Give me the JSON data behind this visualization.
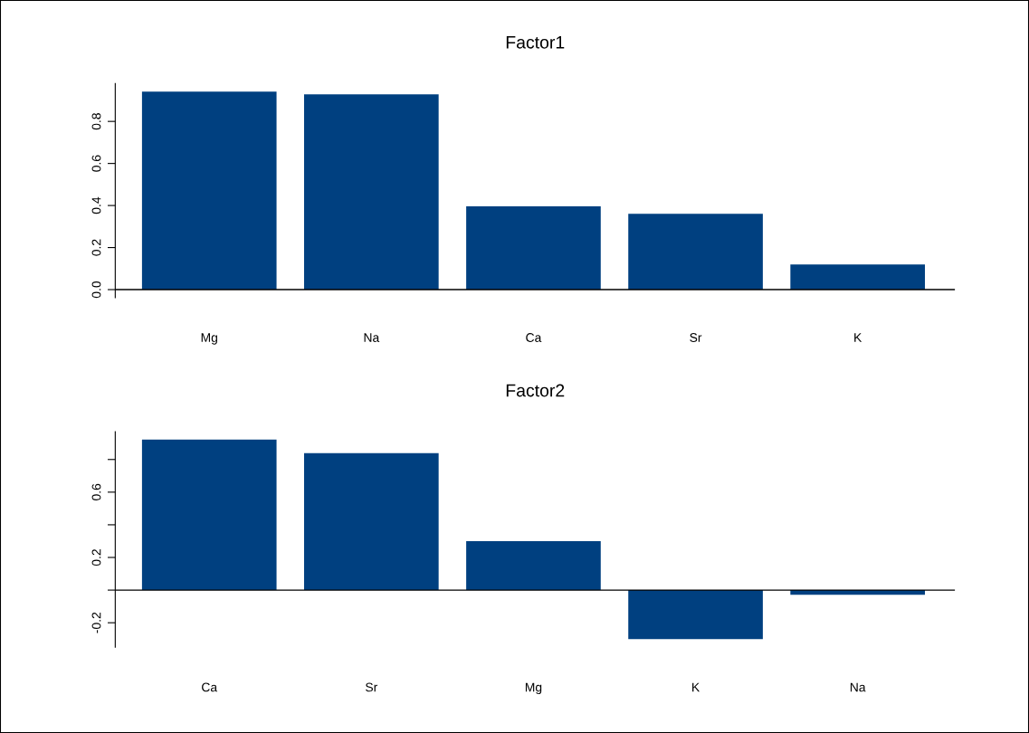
{
  "chart_data": [
    {
      "type": "bar",
      "title": "Factor1",
      "categories": [
        "Mg",
        "Na",
        "Ca",
        "Sr",
        "K"
      ],
      "values": [
        0.942,
        0.929,
        0.396,
        0.361,
        0.12
      ],
      "color": "#004080",
      "ylim": [
        -0.038,
        0.98
      ],
      "yticks": [
        {
          "value": 0,
          "label": "0.0"
        },
        {
          "value": 0.2,
          "label": "0.2"
        },
        {
          "value": 0.4,
          "label": "0.4"
        },
        {
          "value": 0.6,
          "label": "0.6"
        },
        {
          "value": 0.8,
          "label": "0.8"
        }
      ],
      "grid": false,
      "ref_lines": [
        {
          "axis": "y",
          "value": 0,
          "color": "#000000"
        }
      ]
    },
    {
      "type": "bar",
      "title": "Factor2",
      "categories": [
        "Ca",
        "Sr",
        "Mg",
        "K",
        "Na"
      ],
      "values": [
        0.922,
        0.839,
        0.3,
        -0.3,
        -0.028
      ],
      "color": "#004080",
      "ylim": [
        -0.35,
        0.97
      ],
      "yticks": [
        {
          "value": -0.2,
          "label": "-0.2"
        },
        {
          "value": 0.0,
          "label": null
        },
        {
          "value": 0.2,
          "label": "0.2"
        },
        {
          "value": 0.4,
          "label": null
        },
        {
          "value": 0.6,
          "label": "0.6"
        },
        {
          "value": 0.8,
          "label": null
        }
      ],
      "grid": false,
      "ref_lines": [
        {
          "axis": "y",
          "value": 0,
          "color": "#000000"
        }
      ]
    }
  ]
}
